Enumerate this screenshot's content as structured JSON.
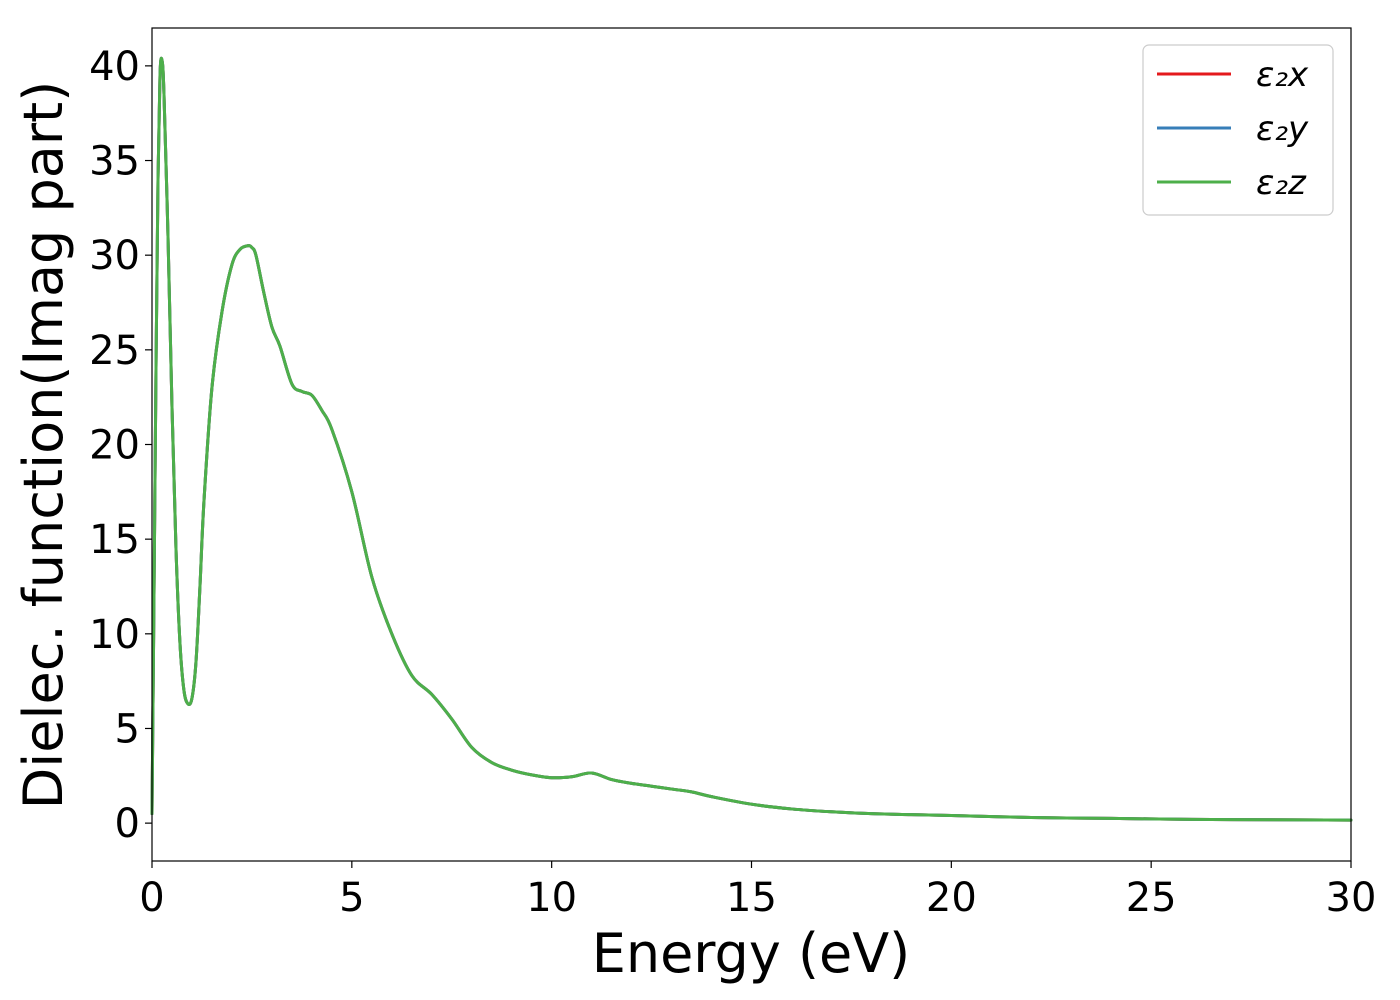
{
  "chart_data": {
    "type": "line",
    "title": "",
    "xlabel": "Energy (eV)",
    "ylabel": "Dielec. function(Imag part)",
    "xlim": [
      0,
      30
    ],
    "ylim": [
      -2,
      42
    ],
    "xticks": [
      0,
      5,
      10,
      15,
      20,
      25,
      30
    ],
    "yticks": [
      0,
      5,
      10,
      15,
      20,
      25,
      30,
      35,
      40
    ],
    "grid": false,
    "legend_position": "top-right",
    "x": [
      0,
      0.05,
      0.1,
      0.15,
      0.2,
      0.25,
      0.3,
      0.4,
      0.5,
      0.6,
      0.7,
      0.8,
      0.9,
      1.0,
      1.1,
      1.2,
      1.3,
      1.5,
      1.75,
      2.0,
      2.2,
      2.4,
      2.5,
      2.6,
      2.8,
      3.0,
      3.2,
      3.5,
      3.75,
      4.0,
      4.25,
      4.5,
      5.0,
      5.5,
      6.0,
      6.5,
      7.0,
      7.5,
      8.0,
      8.5,
      9.0,
      9.5,
      10.0,
      10.5,
      11.0,
      11.5,
      12.0,
      12.5,
      13.0,
      13.5,
      14.0,
      15.0,
      16.0,
      17.0,
      18.0,
      19.0,
      20.0,
      22.0,
      24.0,
      26.0,
      28.0,
      30.0
    ],
    "series": [
      {
        "name": "ε₂x",
        "color": "#e41a1c",
        "values": [
          0.5,
          12.0,
          24.0,
          34.0,
          39.5,
          40.3,
          38.5,
          31.0,
          22.0,
          14.5,
          9.5,
          7.0,
          6.3,
          6.6,
          8.5,
          12.5,
          17.0,
          23.0,
          27.0,
          29.5,
          30.3,
          30.5,
          30.4,
          30.0,
          28.0,
          26.2,
          25.2,
          23.2,
          22.8,
          22.6,
          21.8,
          20.8,
          17.5,
          13.0,
          10.0,
          7.8,
          6.8,
          5.5,
          4.0,
          3.2,
          2.8,
          2.55,
          2.4,
          2.45,
          2.65,
          2.3,
          2.1,
          1.95,
          1.8,
          1.65,
          1.4,
          1.0,
          0.75,
          0.6,
          0.5,
          0.45,
          0.4,
          0.3,
          0.25,
          0.2,
          0.18,
          0.16
        ]
      },
      {
        "name": "ε₂y",
        "color": "#377eb8",
        "values": [
          0.5,
          12.0,
          24.0,
          34.0,
          39.5,
          40.3,
          38.5,
          31.0,
          22.0,
          14.5,
          9.5,
          7.0,
          6.3,
          6.6,
          8.5,
          12.5,
          17.0,
          23.0,
          27.0,
          29.5,
          30.3,
          30.5,
          30.4,
          30.0,
          28.0,
          26.2,
          25.2,
          23.2,
          22.8,
          22.6,
          21.8,
          20.8,
          17.5,
          13.0,
          10.0,
          7.8,
          6.8,
          5.5,
          4.0,
          3.2,
          2.8,
          2.55,
          2.4,
          2.45,
          2.65,
          2.3,
          2.1,
          1.95,
          1.8,
          1.65,
          1.4,
          1.0,
          0.75,
          0.6,
          0.5,
          0.45,
          0.4,
          0.3,
          0.25,
          0.2,
          0.18,
          0.16
        ]
      },
      {
        "name": "ε₂z",
        "color": "#4daf4a",
        "values": [
          0.5,
          12.0,
          24.0,
          34.0,
          39.5,
          40.3,
          38.5,
          31.0,
          22.0,
          14.5,
          9.5,
          7.0,
          6.3,
          6.6,
          8.5,
          12.5,
          17.0,
          23.0,
          27.0,
          29.5,
          30.3,
          30.5,
          30.4,
          30.0,
          28.0,
          26.2,
          25.2,
          23.2,
          22.8,
          22.6,
          21.8,
          20.8,
          17.5,
          13.0,
          10.0,
          7.8,
          6.8,
          5.5,
          4.0,
          3.2,
          2.8,
          2.55,
          2.4,
          2.45,
          2.65,
          2.3,
          2.1,
          1.95,
          1.8,
          1.65,
          1.4,
          1.0,
          0.75,
          0.6,
          0.5,
          0.45,
          0.4,
          0.3,
          0.25,
          0.2,
          0.18,
          0.16
        ]
      }
    ]
  }
}
